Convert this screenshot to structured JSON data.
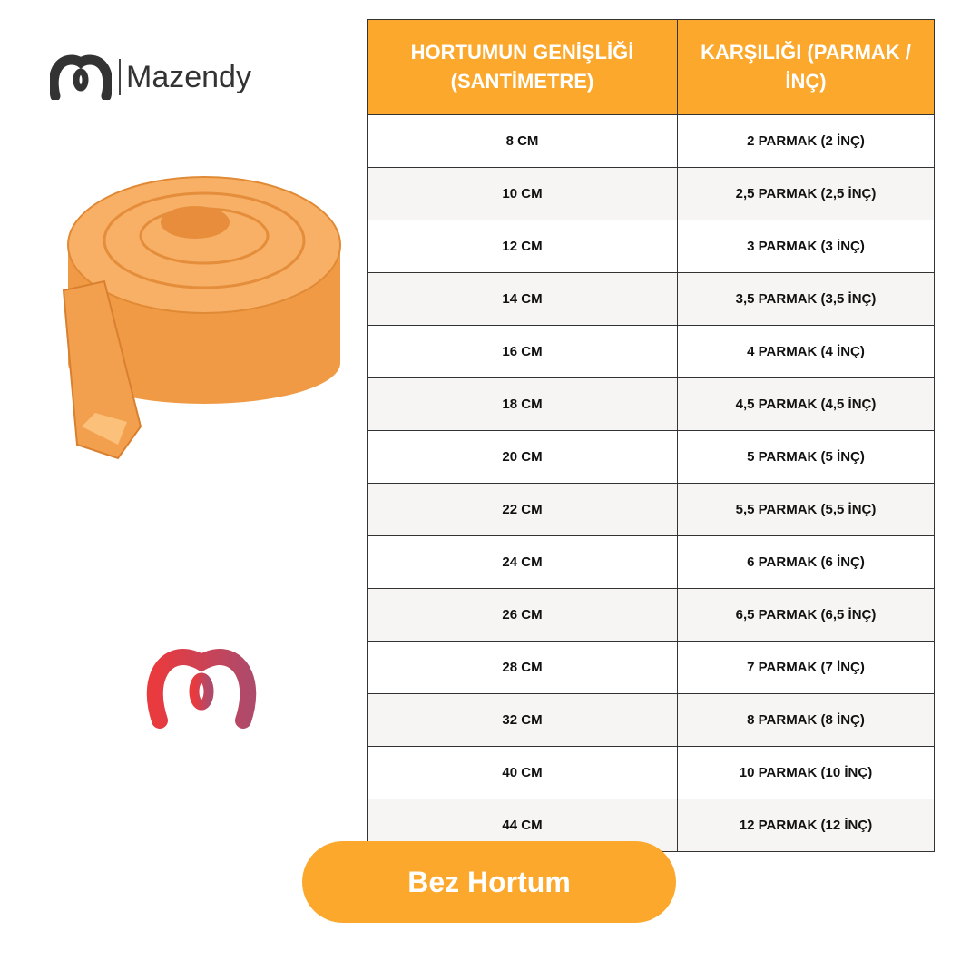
{
  "brand": {
    "name": "Mazendy",
    "accent": "#fba82c"
  },
  "table": {
    "headers": [
      "HORTUMUN GENİŞLİĞİ (SANTİMETRE)",
      "KARŞILIĞI (PARMAK / İNÇ)"
    ],
    "rows": [
      [
        "8 CM",
        "2 PARMAK (2 İNÇ)"
      ],
      [
        "10 CM",
        "2,5 PARMAK (2,5 İNÇ)"
      ],
      [
        "12 CM",
        "3 PARMAK (3 İNÇ)"
      ],
      [
        "14 CM",
        "3,5 PARMAK (3,5 İNÇ)"
      ],
      [
        "16 CM",
        "4 PARMAK (4 İNÇ)"
      ],
      [
        "18 CM",
        "4,5 PARMAK (4,5 İNÇ)"
      ],
      [
        "20 CM",
        "5 PARMAK (5 İNÇ)"
      ],
      [
        "22 CM",
        "5,5 PARMAK (5,5 İNÇ)"
      ],
      [
        "24 CM",
        "6 PARMAK (6 İNÇ)"
      ],
      [
        "26 CM",
        "6,5 PARMAK (6,5 İNÇ)"
      ],
      [
        "28 CM",
        "7 PARMAK (7 İNÇ)"
      ],
      [
        "32 CM",
        "8 PARMAK (8 İNÇ)"
      ],
      [
        "40 CM",
        "10 PARMAK (10 İNÇ)"
      ],
      [
        "44 CM",
        "12 PARMAK (12 İNÇ)"
      ]
    ]
  },
  "button": {
    "label": "Bez Hortum"
  }
}
